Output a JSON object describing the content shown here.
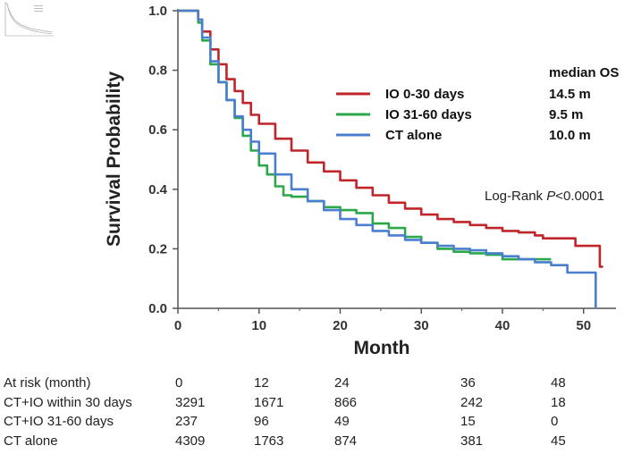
{
  "chart_data": {
    "type": "line",
    "xlabel": "Month",
    "ylabel": "Survival Probability",
    "xlim": [
      0,
      54
    ],
    "ylim": [
      0,
      1.0
    ],
    "x_ticks": [
      0,
      10,
      20,
      30,
      40,
      50
    ],
    "y_ticks": [
      "0.0",
      "0.2",
      "0.4",
      "0.6",
      "0.8",
      "1.0"
    ],
    "legend_header": "median OS",
    "annotation_prefix": "Log-Rank ",
    "annotation_italic": "P",
    "annotation_suffix": "<0.0001",
    "series": [
      {
        "name": "IO 0-30 days",
        "median": "14.5 m",
        "color": "#c0252a",
        "points": [
          [
            0,
            1.0
          ],
          [
            2,
            1.0
          ],
          [
            2.5,
            0.97
          ],
          [
            3,
            0.93
          ],
          [
            4,
            0.87
          ],
          [
            5,
            0.82
          ],
          [
            6,
            0.77
          ],
          [
            7,
            0.73
          ],
          [
            8,
            0.69
          ],
          [
            9,
            0.65
          ],
          [
            10,
            0.62
          ],
          [
            12,
            0.57
          ],
          [
            14,
            0.53
          ],
          [
            16,
            0.49
          ],
          [
            18,
            0.46
          ],
          [
            20,
            0.43
          ],
          [
            22,
            0.405
          ],
          [
            24,
            0.38
          ],
          [
            26,
            0.355
          ],
          [
            28,
            0.335
          ],
          [
            30,
            0.315
          ],
          [
            32,
            0.3
          ],
          [
            34,
            0.29
          ],
          [
            36,
            0.28
          ],
          [
            38,
            0.27
          ],
          [
            40,
            0.26
          ],
          [
            42,
            0.255
          ],
          [
            44,
            0.245
          ],
          [
            45,
            0.235
          ],
          [
            48,
            0.235
          ],
          [
            49,
            0.21
          ],
          [
            52,
            0.21
          ],
          [
            52,
            0.14
          ],
          [
            52.4,
            0.14
          ]
        ]
      },
      {
        "name": "IO 31-60 days",
        "median": "9.5 m",
        "color": "#2aa84a",
        "points": [
          [
            0,
            1.0
          ],
          [
            2,
            1.0
          ],
          [
            2.5,
            0.96
          ],
          [
            3,
            0.9
          ],
          [
            4,
            0.82
          ],
          [
            5,
            0.76
          ],
          [
            6,
            0.7
          ],
          [
            7,
            0.64
          ],
          [
            8,
            0.58
          ],
          [
            9,
            0.53
          ],
          [
            10,
            0.48
          ],
          [
            11,
            0.45
          ],
          [
            12,
            0.41
          ],
          [
            13,
            0.38
          ],
          [
            14,
            0.375
          ],
          [
            16,
            0.36
          ],
          [
            18,
            0.34
          ],
          [
            20,
            0.33
          ],
          [
            22,
            0.32
          ],
          [
            24,
            0.285
          ],
          [
            26,
            0.27
          ],
          [
            28,
            0.24
          ],
          [
            30,
            0.22
          ],
          [
            32,
            0.2
          ],
          [
            34,
            0.19
          ],
          [
            36,
            0.185
          ],
          [
            38,
            0.18
          ],
          [
            40,
            0.165
          ],
          [
            42,
            0.165
          ],
          [
            44,
            0.165
          ],
          [
            46,
            0.165
          ]
        ]
      },
      {
        "name": "CT alone",
        "median": "10.0 m",
        "color": "#4a7fd0",
        "points": [
          [
            0,
            1.0
          ],
          [
            2,
            1.0
          ],
          [
            2.5,
            0.97
          ],
          [
            3,
            0.91
          ],
          [
            4,
            0.83
          ],
          [
            5,
            0.76
          ],
          [
            6,
            0.7
          ],
          [
            7,
            0.645
          ],
          [
            8,
            0.6
          ],
          [
            9,
            0.56
          ],
          [
            10,
            0.52
          ],
          [
            12,
            0.45
          ],
          [
            14,
            0.4
          ],
          [
            16,
            0.36
          ],
          [
            18,
            0.33
          ],
          [
            20,
            0.3
          ],
          [
            22,
            0.28
          ],
          [
            24,
            0.26
          ],
          [
            26,
            0.245
          ],
          [
            28,
            0.23
          ],
          [
            30,
            0.22
          ],
          [
            32,
            0.21
          ],
          [
            34,
            0.2
          ],
          [
            36,
            0.195
          ],
          [
            38,
            0.185
          ],
          [
            40,
            0.175
          ],
          [
            42,
            0.165
          ],
          [
            44,
            0.155
          ],
          [
            46,
            0.145
          ],
          [
            48,
            0.12
          ],
          [
            51.5,
            0.12
          ],
          [
            51.5,
            0.0
          ]
        ]
      }
    ],
    "risk_table": {
      "header_label": "At risk (month)",
      "times": [
        "0",
        "12",
        "24",
        "36",
        "48"
      ],
      "rows": [
        {
          "label": "CT+IO within 30 days",
          "values": [
            "3291",
            "1671",
            "866",
            "242",
            "18"
          ]
        },
        {
          "label": "CT+IO 31-60 days",
          "values": [
            "237",
            "96",
            "49",
            "15",
            "0"
          ]
        },
        {
          "label": "CT alone",
          "values": [
            "4309",
            "1763",
            "874",
            "381",
            "45"
          ]
        }
      ]
    }
  }
}
